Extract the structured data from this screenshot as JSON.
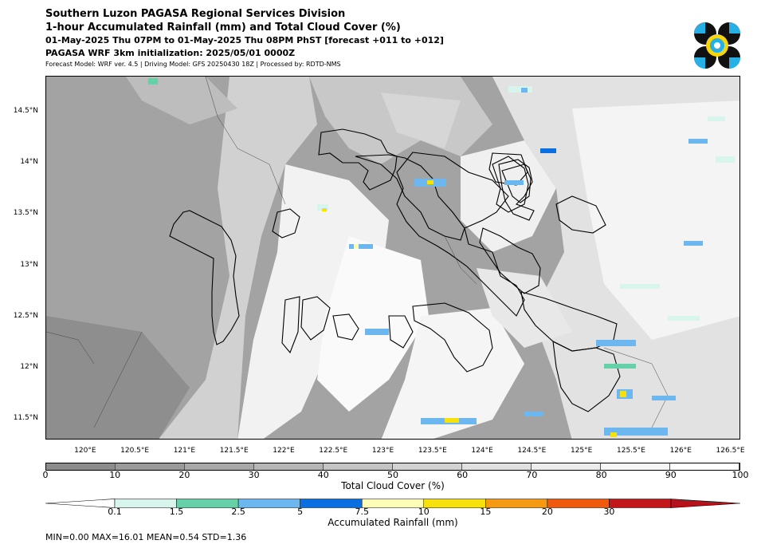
{
  "header": {
    "line1": "Southern Luzon PAGASA Regional Services Division",
    "line2": "1-hour Accumulated Rainfall (mm) and Total Cloud Cover (%)",
    "line3": "01-May-2025 Thu 07PM to 01-May-2025 Thu 08PM PhST [forecast +011 to +012]",
    "line4": "PAGASA WRF 3km initialization: 2025/05/01 0000Z",
    "line5": "Forecast Model: WRF ver. 4.5 | Driving Model: GFS 20250430 18Z | Processed by: RDTD-NMS"
  },
  "logo": {
    "icon": "pagasa-logo-icon",
    "colors": [
      "#111111",
      "#27b0e6",
      "#f7d50f"
    ]
  },
  "map": {
    "lat_range": [
      11.3,
      14.85
    ],
    "lon_range": [
      119.6,
      126.6
    ],
    "lat_labels": [
      "14.5°N",
      "14°N",
      "13.5°N",
      "13°N",
      "12.5°N",
      "12°N",
      "11.5°N"
    ],
    "lat_values": [
      14.5,
      14.0,
      13.5,
      13.0,
      12.5,
      12.0,
      11.5
    ],
    "lon_labels": [
      "120°E",
      "120.5°E",
      "121°E",
      "121.5°E",
      "122°E",
      "122.5°E",
      "123°E",
      "123.5°E",
      "124°E",
      "124.5°E",
      "125°E",
      "125.5°E",
      "126°E",
      "126.5°E"
    ],
    "lon_values": [
      120.0,
      120.5,
      121.0,
      121.5,
      122.0,
      122.5,
      123.0,
      123.5,
      124.0,
      124.5,
      125.0,
      125.5,
      126.0,
      126.5
    ]
  },
  "cloud_colorbar": {
    "title": "Total Cloud Cover (%)",
    "ticks": [
      "0",
      "10",
      "20",
      "30",
      "40",
      "50",
      "60",
      "70",
      "80",
      "90",
      "100"
    ],
    "colors": [
      "#8c8c8c",
      "#9a9a9a",
      "#a8a8a8",
      "#b6b6b6",
      "#c4c4c4",
      "#d2d2d2",
      "#e0e0e0",
      "#ececec",
      "#f6f6f6",
      "#ffffff"
    ]
  },
  "rain_colorbar": {
    "title": "Accumulated Rainfall (mm)",
    "ticks": [
      "0.1",
      "1.5",
      "2.5",
      "5",
      "7.5",
      "10",
      "15",
      "20",
      "30"
    ],
    "colors": [
      "#ffffff",
      "#d7f5ec",
      "#66d1a8",
      "#6db7f0",
      "#0a6fe0",
      "#fdfdb8",
      "#f7e10c",
      "#f59a12",
      "#f05a0c",
      "#c3161b",
      "#b5121b"
    ]
  },
  "stats": {
    "text": "MIN=0.00   MAX=16.01   MEAN=0.54   STD=1.36",
    "min": 0.0,
    "max": 16.01,
    "mean": 0.54,
    "std": 1.36
  }
}
